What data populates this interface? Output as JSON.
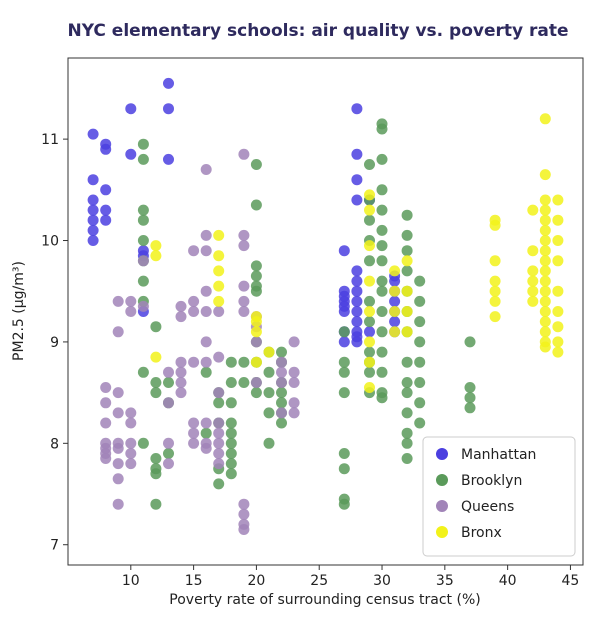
{
  "chart_data": {
    "type": "scatter",
    "title": "NYC elementary schools: air quality vs. poverty rate",
    "xlabel": "Poverty rate of surrounding census tract (%)",
    "ylabel": "PM2.5 (µg/m³)",
    "xlim": [
      5,
      46
    ],
    "ylim": [
      6.8,
      11.8
    ],
    "xticks": [
      "10",
      "15",
      "20",
      "25",
      "30",
      "35",
      "40",
      "45"
    ],
    "yticks": [
      "7",
      "8",
      "9",
      "10",
      "11"
    ],
    "grid": false,
    "legend_position": "bottom-right",
    "series": [
      {
        "name": "Manhattan",
        "color": "#4b3fe0",
        "points": [
          [
            7,
            10.0
          ],
          [
            7,
            10.1
          ],
          [
            7,
            10.2
          ],
          [
            7,
            10.3
          ],
          [
            7,
            10.4
          ],
          [
            7,
            10.6
          ],
          [
            7,
            11.05
          ],
          [
            8,
            10.2
          ],
          [
            8,
            10.3
          ],
          [
            8,
            10.5
          ],
          [
            8,
            10.9
          ],
          [
            8,
            10.95
          ],
          [
            10,
            11.3
          ],
          [
            10,
            10.85
          ],
          [
            11,
            9.9
          ],
          [
            11,
            9.85
          ],
          [
            11,
            9.3
          ],
          [
            13,
            11.55
          ],
          [
            13,
            11.3
          ],
          [
            13,
            10.8
          ],
          [
            27,
            9.9
          ],
          [
            27,
            9.5
          ],
          [
            27,
            9.45
          ],
          [
            27,
            9.4
          ],
          [
            27,
            9.35
          ],
          [
            27,
            9.3
          ],
          [
            27,
            9.1
          ],
          [
            27,
            9.0
          ],
          [
            28,
            11.3
          ],
          [
            28,
            10.85
          ],
          [
            28,
            10.6
          ],
          [
            28,
            10.4
          ],
          [
            28,
            9.7
          ],
          [
            28,
            9.6
          ],
          [
            28,
            9.5
          ],
          [
            28,
            9.4
          ],
          [
            28,
            9.3
          ],
          [
            28,
            9.2
          ],
          [
            28,
            9.1
          ],
          [
            28,
            9.05
          ],
          [
            28,
            9.0
          ],
          [
            29,
            10.4
          ],
          [
            29,
            9.1
          ],
          [
            31,
            9.65
          ],
          [
            31,
            9.6
          ],
          [
            31,
            9.5
          ],
          [
            31,
            9.4
          ],
          [
            31,
            9.3
          ],
          [
            31,
            9.2
          ],
          [
            31,
            9.1
          ]
        ]
      },
      {
        "name": "Brooklyn",
        "color": "#5a9a5a",
        "points": [
          [
            11,
            10.95
          ],
          [
            11,
            10.8
          ],
          [
            11,
            10.3
          ],
          [
            11,
            10.2
          ],
          [
            11,
            10.0
          ],
          [
            11,
            9.8
          ],
          [
            11,
            9.6
          ],
          [
            11,
            9.4
          ],
          [
            11,
            8.7
          ],
          [
            11,
            8.0
          ],
          [
            12,
            9.15
          ],
          [
            12,
            8.6
          ],
          [
            12,
            8.5
          ],
          [
            12,
            7.85
          ],
          [
            12,
            7.75
          ],
          [
            12,
            7.7
          ],
          [
            12,
            7.4
          ],
          [
            13,
            8.6
          ],
          [
            13,
            8.4
          ],
          [
            13,
            7.9
          ],
          [
            16,
            8.7
          ],
          [
            16,
            8.1
          ],
          [
            17,
            8.5
          ],
          [
            17,
            8.4
          ],
          [
            17,
            8.2
          ],
          [
            17,
            7.75
          ],
          [
            17,
            7.6
          ],
          [
            18,
            8.8
          ],
          [
            18,
            8.6
          ],
          [
            18,
            8.4
          ],
          [
            18,
            8.2
          ],
          [
            18,
            8.1
          ],
          [
            18,
            8.0
          ],
          [
            18,
            7.9
          ],
          [
            18,
            7.8
          ],
          [
            18,
            7.7
          ],
          [
            19,
            8.8
          ],
          [
            19,
            8.6
          ],
          [
            20,
            10.75
          ],
          [
            20,
            10.35
          ],
          [
            20,
            9.75
          ],
          [
            20,
            9.65
          ],
          [
            20,
            9.55
          ],
          [
            20,
            9.5
          ],
          [
            20,
            9.0
          ],
          [
            20,
            8.8
          ],
          [
            20,
            8.6
          ],
          [
            20,
            8.5
          ],
          [
            21,
            8.9
          ],
          [
            21,
            8.7
          ],
          [
            21,
            8.5
          ],
          [
            21,
            8.3
          ],
          [
            21,
            8.0
          ],
          [
            22,
            8.9
          ],
          [
            22,
            8.8
          ],
          [
            22,
            8.6
          ],
          [
            22,
            8.5
          ],
          [
            22,
            8.4
          ],
          [
            22,
            8.3
          ],
          [
            22,
            8.2
          ],
          [
            27,
            9.1
          ],
          [
            27,
            8.8
          ],
          [
            27,
            8.7
          ],
          [
            27,
            8.5
          ],
          [
            27,
            7.9
          ],
          [
            27,
            7.75
          ],
          [
            27,
            7.45
          ],
          [
            27,
            7.4
          ],
          [
            29,
            10.75
          ],
          [
            29,
            10.4
          ],
          [
            29,
            10.2
          ],
          [
            29,
            10.0
          ],
          [
            29,
            9.8
          ],
          [
            29,
            9.4
          ],
          [
            29,
            9.2
          ],
          [
            29,
            8.9
          ],
          [
            29,
            8.8
          ],
          [
            29,
            8.7
          ],
          [
            29,
            8.5
          ],
          [
            30,
            11.15
          ],
          [
            30,
            11.1
          ],
          [
            30,
            10.8
          ],
          [
            30,
            10.5
          ],
          [
            30,
            10.3
          ],
          [
            30,
            10.1
          ],
          [
            30,
            9.95
          ],
          [
            30,
            9.8
          ],
          [
            30,
            9.6
          ],
          [
            30,
            9.5
          ],
          [
            30,
            9.3
          ],
          [
            30,
            9.1
          ],
          [
            30,
            8.9
          ],
          [
            30,
            8.7
          ],
          [
            30,
            8.5
          ],
          [
            30,
            8.45
          ],
          [
            32,
            10.25
          ],
          [
            32,
            10.05
          ],
          [
            32,
            9.9
          ],
          [
            32,
            9.7
          ],
          [
            32,
            9.5
          ],
          [
            32,
            9.3
          ],
          [
            32,
            9.1
          ],
          [
            32,
            8.8
          ],
          [
            32,
            8.6
          ],
          [
            32,
            8.5
          ],
          [
            32,
            8.3
          ],
          [
            32,
            8.1
          ],
          [
            32,
            8.0
          ],
          [
            32,
            7.85
          ],
          [
            33,
            9.6
          ],
          [
            33,
            9.4
          ],
          [
            33,
            9.2
          ],
          [
            33,
            9.0
          ],
          [
            33,
            8.8
          ],
          [
            33,
            8.6
          ],
          [
            33,
            8.4
          ],
          [
            33,
            8.2
          ],
          [
            37,
            9.0
          ],
          [
            37,
            8.55
          ],
          [
            37,
            8.45
          ],
          [
            37,
            8.35
          ]
        ]
      },
      {
        "name": "Queens",
        "color": "#a184b8",
        "points": [
          [
            8,
            8.55
          ],
          [
            8,
            8.4
          ],
          [
            8,
            8.2
          ],
          [
            8,
            8.0
          ],
          [
            8,
            7.95
          ],
          [
            8,
            7.9
          ],
          [
            8,
            7.85
          ],
          [
            9,
            9.4
          ],
          [
            9,
            9.1
          ],
          [
            9,
            8.5
          ],
          [
            9,
            8.3
          ],
          [
            9,
            8.0
          ],
          [
            9,
            7.95
          ],
          [
            9,
            7.8
          ],
          [
            9,
            7.65
          ],
          [
            9,
            7.4
          ],
          [
            10,
            9.4
          ],
          [
            10,
            9.3
          ],
          [
            10,
            8.3
          ],
          [
            10,
            8.2
          ],
          [
            10,
            8.0
          ],
          [
            10,
            7.9
          ],
          [
            10,
            7.8
          ],
          [
            11,
            9.8
          ],
          [
            11,
            9.35
          ],
          [
            13,
            8.7
          ],
          [
            13,
            8.4
          ],
          [
            13,
            8.0
          ],
          [
            13,
            7.8
          ],
          [
            14,
            9.35
          ],
          [
            14,
            9.25
          ],
          [
            14,
            8.8
          ],
          [
            14,
            8.7
          ],
          [
            14,
            8.6
          ],
          [
            14,
            8.5
          ],
          [
            15,
            9.9
          ],
          [
            15,
            9.4
          ],
          [
            15,
            9.3
          ],
          [
            15,
            8.8
          ],
          [
            15,
            8.2
          ],
          [
            15,
            8.1
          ],
          [
            15,
            8.0
          ],
          [
            16,
            10.7
          ],
          [
            16,
            10.05
          ],
          [
            16,
            9.9
          ],
          [
            16,
            9.5
          ],
          [
            16,
            9.3
          ],
          [
            16,
            9.0
          ],
          [
            16,
            8.8
          ],
          [
            16,
            8.2
          ],
          [
            16,
            8.0
          ],
          [
            16,
            7.95
          ],
          [
            17,
            9.3
          ],
          [
            17,
            8.85
          ],
          [
            17,
            8.5
          ],
          [
            17,
            8.2
          ],
          [
            17,
            8.1
          ],
          [
            17,
            8.0
          ],
          [
            17,
            7.9
          ],
          [
            17,
            7.8
          ],
          [
            19,
            10.85
          ],
          [
            19,
            10.05
          ],
          [
            19,
            9.95
          ],
          [
            19,
            9.55
          ],
          [
            19,
            9.4
          ],
          [
            19,
            9.3
          ],
          [
            19,
            7.4
          ],
          [
            19,
            7.3
          ],
          [
            19,
            7.2
          ],
          [
            19,
            7.15
          ],
          [
            20,
            9.25
          ],
          [
            20,
            9.15
          ],
          [
            20,
            9.0
          ],
          [
            20,
            8.6
          ],
          [
            22,
            8.8
          ],
          [
            22,
            8.7
          ],
          [
            22,
            8.6
          ],
          [
            22,
            8.3
          ],
          [
            23,
            9.0
          ],
          [
            23,
            8.7
          ],
          [
            23,
            8.6
          ],
          [
            23,
            8.4
          ],
          [
            23,
            8.3
          ]
        ]
      },
      {
        "name": "Bronx",
        "color": "#f2f21a",
        "points": [
          [
            12,
            9.95
          ],
          [
            12,
            9.85
          ],
          [
            12,
            8.85
          ],
          [
            17,
            10.05
          ],
          [
            17,
            9.85
          ],
          [
            17,
            9.7
          ],
          [
            17,
            9.55
          ],
          [
            17,
            9.4
          ],
          [
            20,
            9.25
          ],
          [
            20,
            9.2
          ],
          [
            20,
            9.1
          ],
          [
            20,
            8.8
          ],
          [
            21,
            8.9
          ],
          [
            29,
            10.45
          ],
          [
            29,
            10.3
          ],
          [
            29,
            9.95
          ],
          [
            29,
            9.6
          ],
          [
            29,
            9.3
          ],
          [
            29,
            9.0
          ],
          [
            29,
            8.8
          ],
          [
            29,
            8.55
          ],
          [
            31,
            9.7
          ],
          [
            31,
            9.5
          ],
          [
            31,
            9.3
          ],
          [
            31,
            9.1
          ],
          [
            32,
            9.8
          ],
          [
            32,
            9.5
          ],
          [
            32,
            9.3
          ],
          [
            32,
            9.1
          ],
          [
            39,
            10.2
          ],
          [
            39,
            10.15
          ],
          [
            39,
            9.8
          ],
          [
            39,
            9.6
          ],
          [
            39,
            9.5
          ],
          [
            39,
            9.4
          ],
          [
            39,
            9.25
          ],
          [
            42,
            10.3
          ],
          [
            42,
            9.9
          ],
          [
            42,
            9.7
          ],
          [
            42,
            9.6
          ],
          [
            42,
            9.5
          ],
          [
            42,
            9.4
          ],
          [
            43,
            11.2
          ],
          [
            43,
            10.65
          ],
          [
            43,
            10.4
          ],
          [
            43,
            10.3
          ],
          [
            43,
            10.2
          ],
          [
            43,
            10.1
          ],
          [
            43,
            10.0
          ],
          [
            43,
            9.9
          ],
          [
            43,
            9.8
          ],
          [
            43,
            9.7
          ],
          [
            43,
            9.6
          ],
          [
            43,
            9.5
          ],
          [
            43,
            9.4
          ],
          [
            43,
            9.3
          ],
          [
            43,
            9.2
          ],
          [
            43,
            9.1
          ],
          [
            43,
            9.0
          ],
          [
            43,
            8.95
          ],
          [
            44,
            10.4
          ],
          [
            44,
            10.2
          ],
          [
            44,
            10.0
          ],
          [
            44,
            9.8
          ],
          [
            44,
            9.5
          ],
          [
            44,
            9.3
          ],
          [
            44,
            9.15
          ],
          [
            44,
            9.0
          ],
          [
            44,
            8.9
          ]
        ]
      }
    ]
  }
}
